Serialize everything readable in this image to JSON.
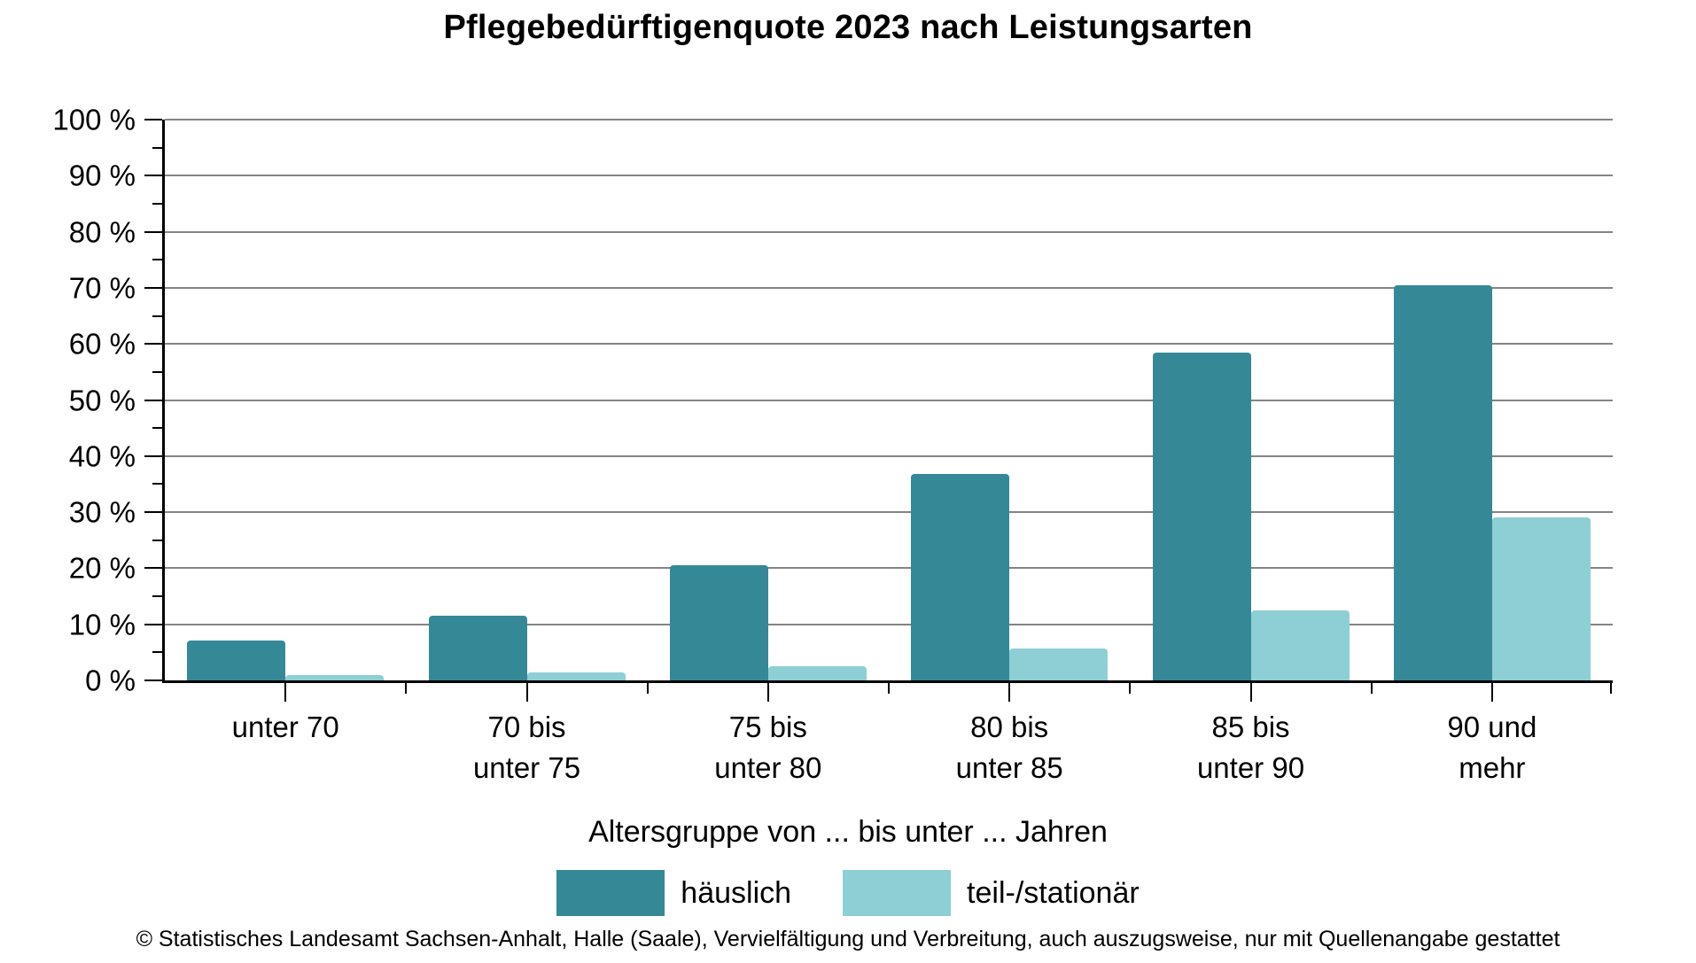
{
  "title": "Pflegebedürftigenquote 2023 nach Leistungsarten",
  "chart_data": {
    "type": "bar",
    "title": "Pflegebedürftigenquote 2023 nach Leistungsarten",
    "categories": [
      [
        "unter 70"
      ],
      [
        "70 bis",
        "unter 75"
      ],
      [
        "75 bis",
        "unter 80"
      ],
      [
        "80 bis",
        "unter 85"
      ],
      [
        "85 bis",
        "unter 90"
      ],
      [
        "90 und",
        "mehr"
      ]
    ],
    "series": [
      {
        "name": "häuslich",
        "color": "#358997",
        "values": [
          7.1,
          11.5,
          20.5,
          36.8,
          58.4,
          70.5
        ]
      },
      {
        "name": "teil-/stationär",
        "color": "#8DCFD5",
        "values": [
          1.0,
          1.5,
          2.6,
          5.7,
          12.5,
          29.0
        ]
      }
    ],
    "xlabel": "Altersgruppe von ... bis unter ... Jahren",
    "ylabel": "",
    "ylim": [
      0,
      100
    ],
    "y_major_step": 10,
    "y_minor_step": 5,
    "y_tick_labels": [
      "0 %",
      "10 %",
      "20 %",
      "30 %",
      "40 %",
      "50 %",
      "60 %",
      "70 %",
      "80 %",
      "90 %",
      "100 %"
    ],
    "grid": "horizontal-major",
    "gridline_color": "#848484",
    "legend_position": "bottom"
  },
  "footer": "© Statistisches Landesamt Sachsen-Anhalt, Halle (Saale), Vervielfältigung und Verbreitung, auch auszugsweise, nur mit Quellenangabe gestattet"
}
